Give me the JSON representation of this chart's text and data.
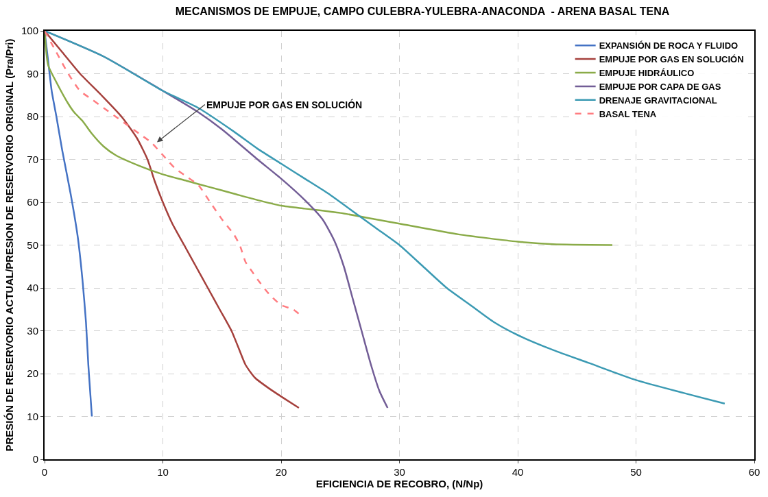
{
  "chart_data": {
    "type": "line",
    "title": "MECANISMOS DE EMPUJE, CAMPO CULEBRA-YULEBRA-ANACONDA  - ARENA BASAL TENA",
    "xlabel": "EFICIENCIA DE RECOBRO, (N/Np)",
    "ylabel": "PRESIÓN DE RESERVORIO ACTUAL/PRESION DE RESERVORIO ORIGINAL (Pra/Pri)",
    "xlim": [
      0,
      60
    ],
    "ylim": [
      0,
      100
    ],
    "xticks": [
      0,
      10,
      20,
      30,
      40,
      50,
      60
    ],
    "yticks": [
      0,
      10,
      20,
      30,
      40,
      50,
      60,
      70,
      80,
      90,
      100
    ],
    "grid": true,
    "legend": "top right",
    "marker": "none",
    "annotations": [
      {
        "text": "EMPUJE POR GAS EN SOLUCIÓN",
        "x": 9.5,
        "y": 74
      }
    ],
    "series": [
      {
        "name": "EXPANSIÓN DE ROCA Y FLUIDO",
        "color": "#4472c4",
        "x": [
          0,
          0.3,
          0.6,
          1,
          1.5,
          2.2,
          2.8,
          3.2,
          3.5,
          3.7,
          3.85,
          4
        ],
        "values": [
          100,
          93,
          86,
          80,
          72,
          62,
          52,
          42,
          32,
          22,
          16,
          10
        ]
      },
      {
        "name": "EMPUJE POR GAS EN SOLUCIÓN",
        "color": "#a5403c",
        "x": [
          0,
          1.5,
          3,
          4.8,
          6.5,
          7.8,
          8.7,
          9.3,
          10,
          10.8,
          11.8,
          12.8,
          13.8,
          14.8,
          15.8,
          16.4,
          17,
          17.8,
          19,
          20.2,
          21.5
        ],
        "values": [
          100,
          95,
          90,
          85,
          80,
          75,
          70,
          65,
          60,
          55,
          50,
          45,
          40,
          35,
          30,
          26,
          22,
          19,
          16.5,
          14.3,
          12
        ]
      },
      {
        "name": "EMPUJE HIDRÁULICO",
        "color": "#8aab48",
        "x": [
          0,
          0.3,
          1,
          2,
          2.5,
          3.2,
          4,
          5,
          6,
          8,
          10,
          12,
          14,
          16,
          18,
          20,
          22,
          25,
          28,
          30,
          35,
          40,
          43,
          48
        ],
        "values": [
          100,
          92,
          88,
          83,
          81,
          79,
          76,
          73,
          71,
          68.5,
          66.5,
          65,
          63.5,
          62,
          60.5,
          59.2,
          58.5,
          57.5,
          56,
          55,
          52.5,
          50.8,
          50.2,
          50
        ]
      },
      {
        "name": "EMPUJE POR CAPA DE GAS",
        "color": "#725d96",
        "x": [
          0,
          5,
          10,
          13,
          15,
          18,
          20,
          22,
          23.5,
          24.5,
          25.3,
          26,
          26.8,
          27.6,
          28.3,
          29
        ],
        "values": [
          100,
          94,
          86,
          81,
          77,
          70,
          65.5,
          60.5,
          56,
          51,
          45,
          38,
          30,
          22,
          16,
          12
        ]
      },
      {
        "name": "DRENAJE GRAVITACIONAL",
        "color": "#3b9ab3",
        "x": [
          0,
          5,
          10,
          13,
          16,
          18,
          20,
          22,
          24,
          26,
          28,
          30,
          32,
          34,
          36,
          38,
          40,
          43,
          46,
          50,
          54,
          57.5
        ],
        "values": [
          100,
          94,
          86,
          82,
          76.5,
          72.5,
          69,
          65.5,
          62,
          58,
          54,
          50,
          45,
          40,
          36,
          32,
          29,
          25.5,
          22.5,
          18.5,
          15.5,
          13
        ]
      },
      {
        "name": "BASAL TENA",
        "color": "#ff7c80",
        "line_style": "dashed",
        "x": [
          0,
          1,
          2,
          3,
          4,
          5,
          6,
          7,
          8,
          9,
          10,
          11,
          12,
          13,
          14,
          15,
          16,
          16.5,
          17,
          17.5,
          18,
          19,
          20,
          21,
          21.7
        ],
        "values": [
          100,
          95,
          90,
          86,
          84,
          82,
          80,
          78,
          76,
          74,
          71,
          68,
          66,
          64,
          60,
          56,
          52.5,
          50,
          46,
          44,
          42,
          38.5,
          36,
          35,
          33.5
        ]
      }
    ]
  }
}
